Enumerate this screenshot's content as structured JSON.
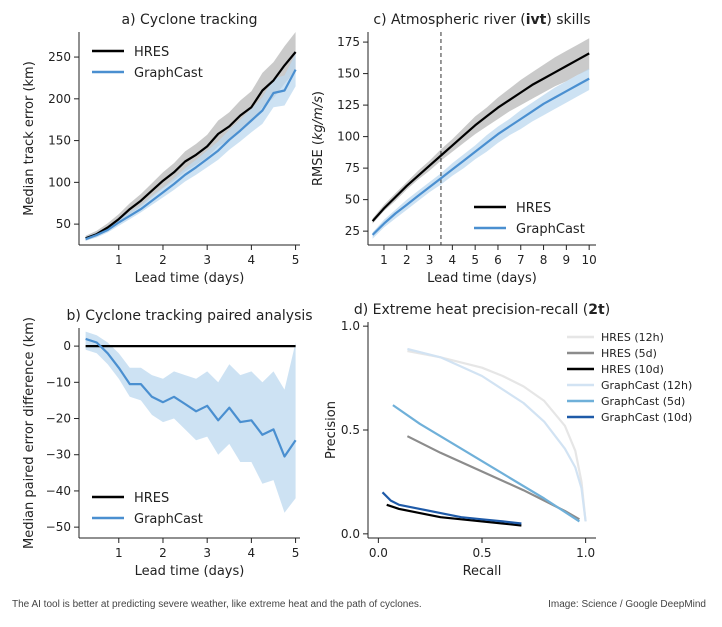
{
  "figure_type": "multi-panel chart",
  "caption": {
    "text": "The AI tool is better at predicting severe weather, like extreme heat and the path of cyclones.",
    "credit": "Image: Science / Google DeepMind"
  },
  "colors": {
    "hres": "#000000",
    "graphcast": "#4a8fd0",
    "hres_band": "#b8b8b8",
    "graphcast_band": "#bcd8ef"
  },
  "chart_data": [
    {
      "id": "a",
      "type": "line",
      "title": "a) Cyclone tracking",
      "xlabel": "Lead time (days)",
      "ylabel": "Median track error (km)",
      "xlim": [
        0.1,
        5.1
      ],
      "ylim": [
        25,
        280
      ],
      "xticks": [
        1,
        2,
        3,
        4,
        5
      ],
      "yticks": [
        50,
        100,
        150,
        200,
        250
      ],
      "legend_position": "top-left",
      "x": [
        0.25,
        0.5,
        0.75,
        1.0,
        1.25,
        1.5,
        1.75,
        2.0,
        2.25,
        2.5,
        2.75,
        3.0,
        3.25,
        3.5,
        3.75,
        4.0,
        4.25,
        4.5,
        4.75,
        5.0
      ],
      "series": [
        {
          "name": "HRES",
          "color": "#000000",
          "values": [
            33,
            38,
            46,
            56,
            68,
            78,
            90,
            102,
            112,
            125,
            133,
            143,
            158,
            167,
            180,
            190,
            210,
            222,
            240,
            256
          ],
          "lower": [
            30,
            35,
            42,
            51,
            62,
            71,
            82,
            93,
            102,
            113,
            121,
            130,
            143,
            151,
            163,
            172,
            190,
            201,
            218,
            234
          ],
          "upper": [
            36,
            42,
            51,
            62,
            75,
            86,
            99,
            112,
            123,
            137,
            146,
            157,
            174,
            184,
            198,
            209,
            231,
            244,
            263,
            280
          ]
        },
        {
          "name": "GraphCast",
          "color": "#4a8fd0",
          "values": [
            32,
            37,
            43,
            52,
            60,
            68,
            78,
            88,
            98,
            109,
            118,
            128,
            138,
            151,
            162,
            174,
            186,
            207,
            210,
            235
          ],
          "lower": [
            30,
            34,
            40,
            48,
            56,
            64,
            73,
            82,
            91,
            101,
            109,
            118,
            127,
            139,
            149,
            160,
            170,
            190,
            192,
            215
          ],
          "upper": [
            35,
            40,
            47,
            56,
            65,
            73,
            84,
            94,
            105,
            117,
            127,
            138,
            149,
            163,
            175,
            188,
            202,
            224,
            228,
            254
          ]
        }
      ]
    },
    {
      "id": "b",
      "type": "line",
      "title": "b) Cyclone tracking paired analysis",
      "xlabel": "Lead time (days)",
      "ylabel": "Median paired error difference (km)",
      "xlim": [
        0.1,
        5.1
      ],
      "ylim": [
        -53,
        5
      ],
      "xticks": [
        1,
        2,
        3,
        4,
        5
      ],
      "yticks": [
        0,
        -10,
        -20,
        -30,
        -40,
        -50
      ],
      "legend_position": "bottom-left",
      "x": [
        0.25,
        0.5,
        0.75,
        1.0,
        1.25,
        1.5,
        1.75,
        2.0,
        2.25,
        2.5,
        2.75,
        3.0,
        3.25,
        3.5,
        3.75,
        4.0,
        4.25,
        4.5,
        4.75,
        5.0
      ],
      "series": [
        {
          "name": "HRES",
          "color": "#000000",
          "values": [
            0,
            0,
            0,
            0,
            0,
            0,
            0,
            0,
            0,
            0,
            0,
            0,
            0,
            0,
            0,
            0,
            0,
            0,
            0,
            0
          ]
        },
        {
          "name": "GraphCast",
          "color": "#4a8fd0",
          "values": [
            2,
            1,
            -2,
            -6,
            -10.5,
            -10.5,
            -14,
            -15.5,
            -14,
            -16,
            -18,
            -16.5,
            -20.5,
            -17,
            -21,
            -20.5,
            -24.5,
            -23,
            -30.5,
            -26
          ],
          "lower": [
            -1,
            -2,
            -5,
            -9,
            -14,
            -15,
            -19,
            -21,
            -20,
            -23,
            -26,
            -25,
            -30,
            -27,
            -32,
            -32,
            -38,
            -37,
            -46,
            -42
          ],
          "upper": [
            4,
            3,
            1,
            -2,
            -6,
            -6,
            -8,
            -9,
            -7,
            -8,
            -9,
            -7,
            -10,
            -5,
            -8,
            -7,
            -10,
            -7,
            -12,
            1
          ]
        }
      ]
    },
    {
      "id": "c",
      "type": "line",
      "title_parts": [
        "c) Atmospheric river (",
        "ivt",
        ") skills"
      ],
      "xlabel": "Lead time (days)",
      "ylabel": "RMSE (kg/m/s)",
      "ylabel_parts": [
        "RMSE (",
        "kg/m/s",
        ")"
      ],
      "xlim": [
        0.3,
        10.3
      ],
      "ylim": [
        14,
        183
      ],
      "xticks": [
        1,
        2,
        3,
        4,
        5,
        6,
        7,
        8,
        9,
        10
      ],
      "yticks": [
        25,
        50,
        75,
        100,
        125,
        150,
        175
      ],
      "vline": 3.5,
      "legend_position": "bottom-right",
      "x": [
        0.5,
        1,
        1.5,
        2,
        2.5,
        3,
        3.5,
        4,
        4.5,
        5,
        5.5,
        6,
        6.5,
        7,
        7.5,
        8,
        8.5,
        9,
        9.5,
        10
      ],
      "series": [
        {
          "name": "HRES",
          "color": "#000000",
          "values": [
            33,
            43,
            52,
            61,
            69,
            77,
            85,
            93,
            101,
            109,
            116,
            123,
            129,
            135,
            141,
            146,
            151,
            156,
            161,
            166
          ],
          "lower": [
            31,
            41,
            49,
            58,
            66,
            73,
            81,
            88,
            95,
            102,
            108,
            114,
            120,
            125,
            130,
            135,
            140,
            144,
            149,
            153
          ],
          "upper": [
            35,
            46,
            55,
            64,
            73,
            81,
            90,
            98,
            107,
            116,
            123,
            131,
            138,
            145,
            151,
            157,
            163,
            168,
            173,
            178
          ]
        },
        {
          "name": "GraphCast",
          "color": "#4a8fd0",
          "values": [
            22,
            31,
            39,
            46,
            53,
            60,
            67,
            74,
            81,
            88,
            95,
            102,
            108,
            114,
            120,
            126,
            131,
            136,
            141,
            146
          ],
          "lower": [
            19,
            28,
            35,
            42,
            49,
            56,
            62,
            69,
            75,
            82,
            88,
            95,
            101,
            106,
            112,
            117,
            122,
            127,
            132,
            137
          ],
          "upper": [
            24,
            34,
            42,
            50,
            57,
            64,
            71,
            79,
            86,
            93,
            101,
            108,
            114,
            121,
            127,
            133,
            139,
            144,
            149,
            154
          ]
        }
      ]
    },
    {
      "id": "d",
      "type": "line",
      "title_parts": [
        "d) Extreme heat precision-recall (",
        "2t",
        ")"
      ],
      "xlabel": "Recall",
      "ylabel": "Precision",
      "xlim": [
        -0.05,
        1.05
      ],
      "ylim": [
        -0.02,
        1.02
      ],
      "xticks": [
        0.0,
        0.5,
        1.0
      ],
      "xtick_labels": [
        "0.0",
        "0.5",
        "1.0"
      ],
      "yticks": [
        0.0,
        0.5,
        1.0
      ],
      "ytick_labels": [
        "0.0",
        "0.5",
        "1.0"
      ],
      "legend_position": "top-right",
      "series": [
        {
          "name": "HRES (12h)",
          "color": "#e6e6e6",
          "x": [
            0.14,
            0.3,
            0.5,
            0.6,
            0.7,
            0.8,
            0.9,
            0.95,
            0.98,
            1.0
          ],
          "values": [
            0.88,
            0.85,
            0.8,
            0.76,
            0.71,
            0.64,
            0.52,
            0.4,
            0.25,
            0.06
          ]
        },
        {
          "name": "HRES (5d)",
          "color": "#8c8c8c",
          "x": [
            0.14,
            0.3,
            0.5,
            0.7,
            0.9,
            0.97
          ],
          "values": [
            0.47,
            0.39,
            0.3,
            0.21,
            0.11,
            0.07
          ]
        },
        {
          "name": "HRES (10d)",
          "color": "#000000",
          "x": [
            0.04,
            0.1,
            0.2,
            0.3,
            0.4,
            0.5,
            0.6,
            0.69
          ],
          "values": [
            0.14,
            0.12,
            0.1,
            0.08,
            0.07,
            0.06,
            0.05,
            0.04
          ]
        },
        {
          "name": "GraphCast (12h)",
          "color": "#d2e3f3",
          "x": [
            0.14,
            0.3,
            0.5,
            0.7,
            0.8,
            0.9,
            0.95,
            0.98,
            1.0
          ],
          "values": [
            0.89,
            0.85,
            0.76,
            0.63,
            0.54,
            0.41,
            0.32,
            0.22,
            0.06
          ]
        },
        {
          "name": "GraphCast (5d)",
          "color": "#6fb0d9",
          "x": [
            0.07,
            0.2,
            0.4,
            0.6,
            0.8,
            0.97
          ],
          "values": [
            0.62,
            0.53,
            0.41,
            0.29,
            0.17,
            0.06
          ]
        },
        {
          "name": "GraphCast (10d)",
          "color": "#1e5aa8",
          "x": [
            0.02,
            0.06,
            0.1,
            0.2,
            0.3,
            0.4,
            0.5,
            0.6,
            0.69
          ],
          "values": [
            0.2,
            0.16,
            0.14,
            0.12,
            0.1,
            0.08,
            0.07,
            0.06,
            0.05
          ]
        }
      ]
    }
  ]
}
